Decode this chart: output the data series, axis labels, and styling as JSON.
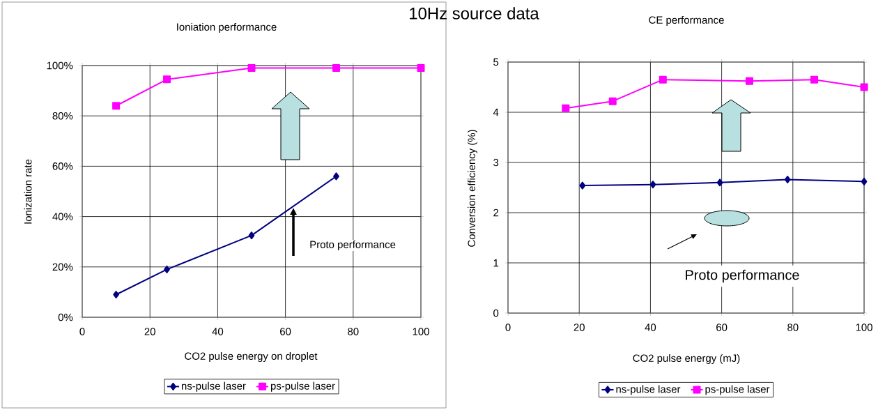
{
  "chart_data": [
    {
      "type": "line",
      "title": "Ioniation performance",
      "xlabel": "CO2 pulse energy on droplet",
      "ylabel": "Ionization rate",
      "annotations": [
        "10Hz source data",
        "Proto performance"
      ],
      "xlim": [
        0,
        100
      ],
      "xticks": [
        0,
        20,
        40,
        60,
        80,
        100
      ],
      "ylim": [
        0,
        100
      ],
      "yticks": [
        {
          "value": 0,
          "label": "0%"
        },
        {
          "value": 20,
          "label": "20%"
        },
        {
          "value": 40,
          "label": "40%"
        },
        {
          "value": 60,
          "label": "60%"
        },
        {
          "value": 80,
          "label": "80%"
        },
        {
          "value": 100,
          "label": "100%"
        }
      ],
      "grid": true,
      "legend": "bottom",
      "series": [
        {
          "name": "ns-pulse laser",
          "color": "#000080",
          "marker": "diamond",
          "x": [
            10,
            25,
            50,
            75
          ],
          "values": [
            9,
            19,
            32.5,
            56
          ]
        },
        {
          "name": "ps-pulse laser",
          "color": "#ff00ff",
          "marker": "square",
          "x": [
            10,
            25,
            50,
            75,
            100
          ],
          "values": [
            84,
            94.5,
            99,
            99,
            99
          ]
        }
      ]
    },
    {
      "type": "line",
      "title": "CE performance",
      "xlabel": "CO2 pulse energy (mJ)",
      "ylabel": "Conversion efficiency (%)",
      "annotations": [
        "Proto performance"
      ],
      "xlim": [
        0,
        100
      ],
      "xticks": [
        0,
        20,
        40,
        60,
        80,
        100
      ],
      "ylim": [
        0,
        5
      ],
      "yticks": [
        0,
        1,
        2,
        3,
        4,
        5
      ],
      "grid": true,
      "legend": "bottom",
      "series": [
        {
          "name": "ns-pulse laser",
          "color": "#000080",
          "marker": "diamond",
          "x": [
            20.9,
            40.7,
            59.5,
            78.5,
            100
          ],
          "values": [
            2.54,
            2.56,
            2.6,
            2.66,
            2.62
          ]
        },
        {
          "name": "ps-pulse laser",
          "color": "#ff00ff",
          "marker": "square",
          "x": [
            16.2,
            29.4,
            43.5,
            67.8,
            86,
            100
          ],
          "values": [
            4.08,
            4.22,
            4.65,
            4.62,
            4.65,
            4.5
          ]
        }
      ]
    }
  ]
}
